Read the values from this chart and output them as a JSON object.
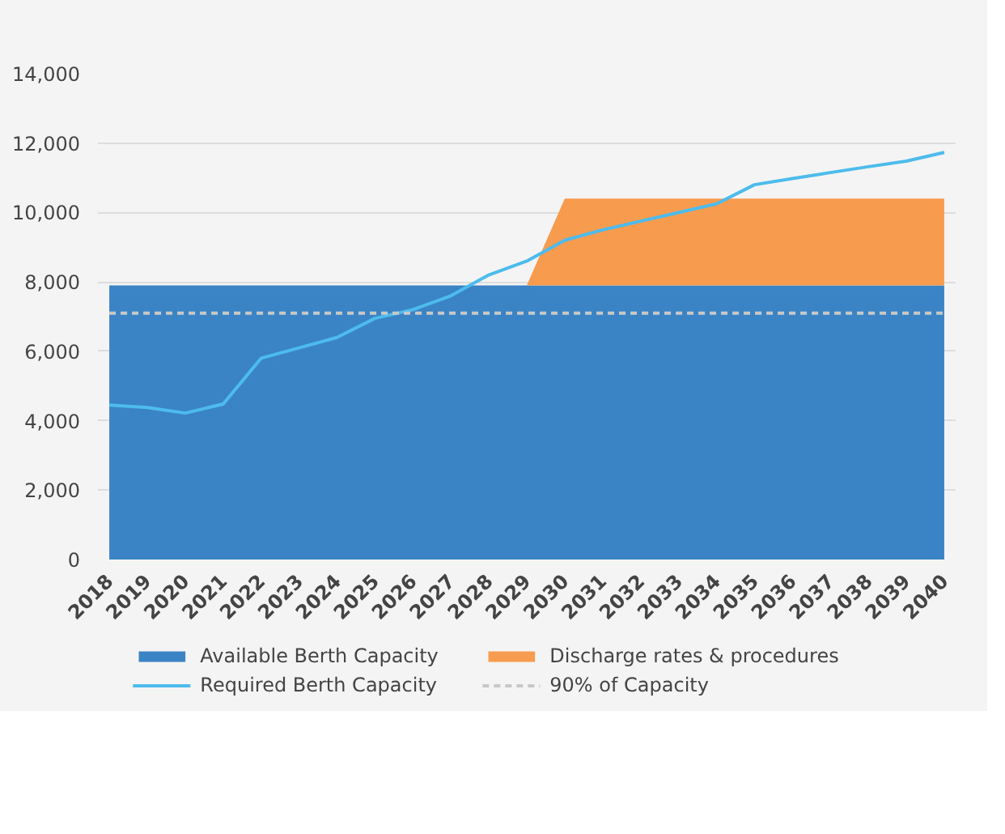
{
  "chart_data": {
    "type": "area",
    "stacked": true,
    "categories": [
      "2018",
      "2019",
      "2020",
      "2021",
      "2022",
      "2023",
      "2024",
      "2025",
      "2026",
      "2027",
      "2028",
      "2029",
      "2030",
      "2031",
      "2032",
      "2033",
      "2034",
      "2035",
      "2036",
      "2037",
      "2038",
      "2039",
      "2040"
    ],
    "series": [
      {
        "name": "Available Berth Capacity",
        "color": "#3a84c6",
        "values": [
          7900,
          7900,
          7900,
          7900,
          7900,
          7900,
          7900,
          7900,
          7900,
          7900,
          7900,
          7900,
          7900,
          7900,
          7900,
          7900,
          7900,
          7900,
          7900,
          7900,
          7900,
          7900,
          7900
        ]
      },
      {
        "name": "Discharge rates & procedures",
        "color": "#f79b4f",
        "values": [
          0,
          0,
          0,
          0,
          0,
          0,
          0,
          0,
          0,
          0,
          0,
          0,
          2500,
          2500,
          2500,
          2500,
          2500,
          2500,
          2500,
          2500,
          2500,
          2500,
          2500
        ]
      },
      {
        "name": "Required Berth Capacity",
        "color": "#4dbbec",
        "type": "line",
        "values": [
          4450,
          4380,
          4220,
          4480,
          5800,
          6100,
          6400,
          6950,
          7200,
          7600,
          8200,
          8600,
          9200,
          9500,
          9750,
          10000,
          10250,
          10800,
          10980,
          11150,
          11320,
          11480,
          11730
        ]
      }
    ],
    "ref_lines": [
      {
        "axis": "y",
        "value": 7100,
        "label": "90% of Capacity",
        "color": "#c8c8c8",
        "line_style": "dashed"
      }
    ],
    "ylim": [
      0,
      14000
    ],
    "yticks": [
      {
        "value": 0,
        "label": "0"
      },
      {
        "value": 2000,
        "label": "2,000"
      },
      {
        "value": 4000,
        "label": "4,000"
      },
      {
        "value": 6000,
        "label": "6,000"
      },
      {
        "value": 8000,
        "label": "8,000"
      },
      {
        "value": 10000,
        "label": "10,000"
      },
      {
        "value": 12000,
        "label": "12,000"
      },
      {
        "value": 14000,
        "label": "14,000"
      }
    ],
    "grid": "y",
    "legend": "bottom"
  }
}
